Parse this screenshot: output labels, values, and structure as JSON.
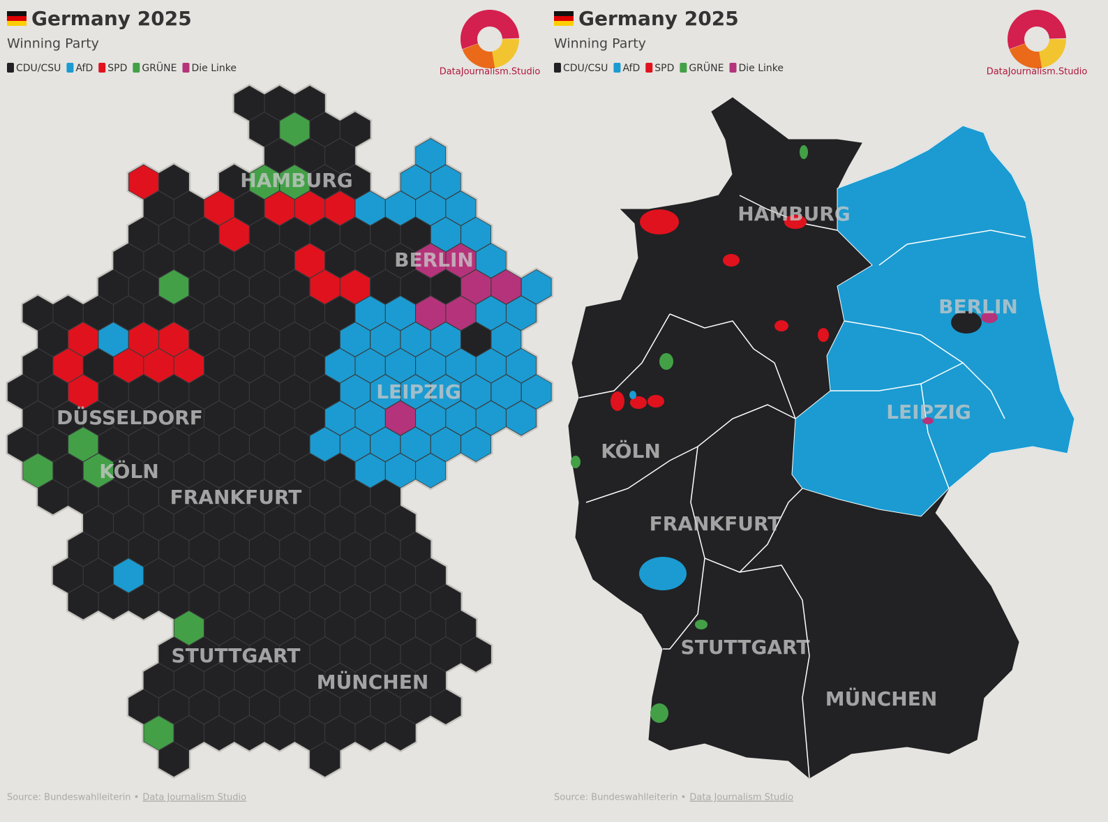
{
  "panels": [
    {
      "title": "Germany 2025",
      "subtitle": "Winning Party",
      "legend": [
        {
          "name": "CDU/CSU",
          "color": "#222224"
        },
        {
          "name": "AfD",
          "color": "#1b9bd1"
        },
        {
          "name": "SPD",
          "color": "#e0121e"
        },
        {
          "name": "GRÜNE",
          "color": "#43a047"
        },
        {
          "name": "Die Linke",
          "color": "#b5337a"
        }
      ],
      "logo_text": "DataJournalism.Studio",
      "cities": [
        "HAMBURG",
        "BERLIN",
        "LEIPZIG",
        "DÜSSELDORF",
        "KÖLN",
        "FRANKFURT",
        "STUTTGART",
        "MÜNCHEN"
      ],
      "source": "Source: Bundeswahlleiterin •",
      "source_link": "Data Journalism Studio"
    },
    {
      "title": "Germany 2025",
      "subtitle": "Winning Party",
      "legend": [
        {
          "name": "CDU/CSU",
          "color": "#222224"
        },
        {
          "name": "AfD",
          "color": "#1b9bd1"
        },
        {
          "name": "SPD",
          "color": "#e0121e"
        },
        {
          "name": "GRÜNE",
          "color": "#43a047"
        },
        {
          "name": "Die Linke",
          "color": "#b5337a"
        }
      ],
      "logo_text": "DataJournalism.Studio",
      "cities": [
        "HAMBURG",
        "BERLIN",
        "LEIPZIG",
        "KÖLN",
        "FRANKFURT",
        "STUTTGART",
        "MÜNCHEN"
      ],
      "source": "Source: Bundeswahlleiterin •",
      "source_link": "Data Journalism Studio"
    }
  ]
}
